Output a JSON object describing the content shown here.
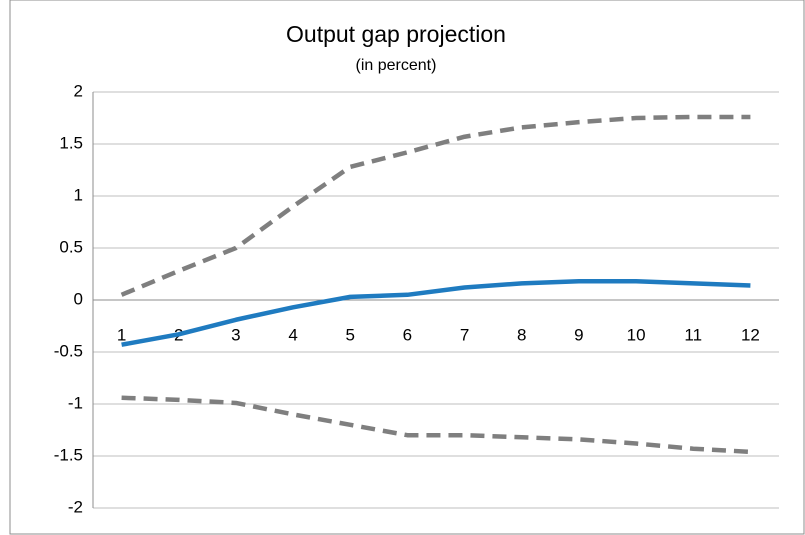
{
  "chart_data": {
    "type": "line",
    "title": "Output gap projection",
    "subtitle": "(in percent)",
    "categories": [
      1,
      2,
      3,
      4,
      5,
      6,
      7,
      8,
      9,
      10,
      11,
      12
    ],
    "series": [
      {
        "color": "#7f7f7f",
        "style": "dashed",
        "values": [
          0.05,
          0.28,
          0.5,
          0.9,
          1.28,
          1.42,
          1.57,
          1.66,
          1.71,
          1.75,
          1.76,
          1.76
        ]
      },
      {
        "color": "#1f7bc0",
        "style": "solid",
        "values": [
          -0.43,
          -0.33,
          -0.19,
          -0.07,
          0.03,
          0.05,
          0.12,
          0.16,
          0.18,
          0.18,
          0.16,
          0.14
        ]
      },
      {
        "color": "#7f7f7f",
        "style": "dashed",
        "values": [
          -0.94,
          -0.96,
          -0.99,
          -1.1,
          -1.2,
          -1.3,
          -1.3,
          -1.32,
          -1.34,
          -1.38,
          -1.43,
          -1.46
        ]
      }
    ],
    "ylim": [
      -2,
      2
    ],
    "yticks": [
      -2,
      -1.5,
      -1,
      -0.5,
      0,
      0.5,
      1,
      1.5,
      2
    ],
    "grid": true
  }
}
